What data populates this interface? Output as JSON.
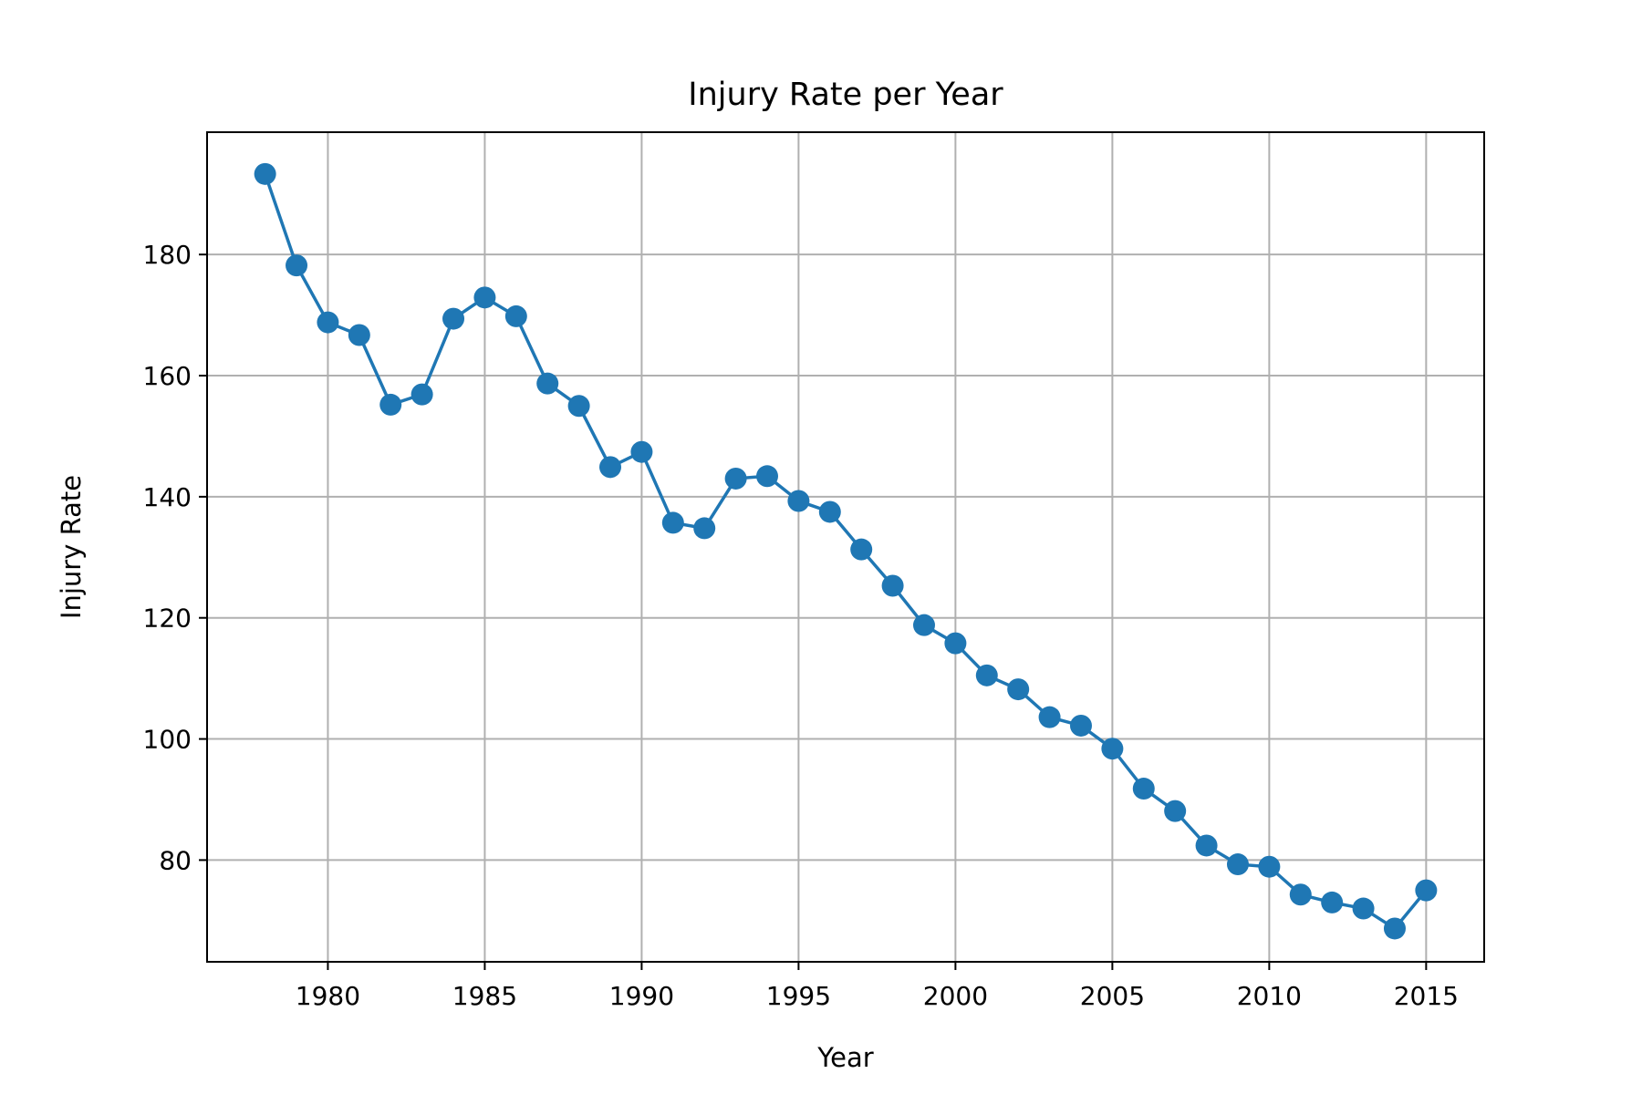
{
  "chart_data": {
    "type": "line",
    "title": "Injury Rate per Year",
    "xlabel": "Year",
    "ylabel": "Injury Rate",
    "xlim": [
      1976.15,
      2016.85
    ],
    "ylim": [
      63.2,
      200.2
    ],
    "xticks": [
      1980,
      1985,
      1990,
      1995,
      2000,
      2005,
      2010,
      2015
    ],
    "yticks": [
      80,
      100,
      120,
      140,
      160,
      180
    ],
    "grid": true,
    "marker": "circle",
    "color": "#1f77b4",
    "x": [
      1978,
      1979,
      1980,
      1981,
      1982,
      1983,
      1984,
      1985,
      1986,
      1987,
      1988,
      1989,
      1990,
      1991,
      1992,
      1993,
      1994,
      1995,
      1996,
      1997,
      1998,
      1999,
      2000,
      2001,
      2002,
      2003,
      2004,
      2005,
      2006,
      2007,
      2008,
      2009,
      2010,
      2011,
      2012,
      2013,
      2014,
      2015
    ],
    "series": [
      {
        "values": [
          193.3,
          178.2,
          168.8,
          166.7,
          155.2,
          156.9,
          169.4,
          172.9,
          169.8,
          158.7,
          155.0,
          144.9,
          147.4,
          135.7,
          134.8,
          143.0,
          143.4,
          139.3,
          137.5,
          131.3,
          125.3,
          118.8,
          115.8,
          110.5,
          108.2,
          103.6,
          102.2,
          98.4,
          91.8,
          88.1,
          82.4,
          79.3,
          78.9,
          74.3,
          73.0,
          72.0,
          68.7,
          75.0
        ]
      }
    ]
  }
}
